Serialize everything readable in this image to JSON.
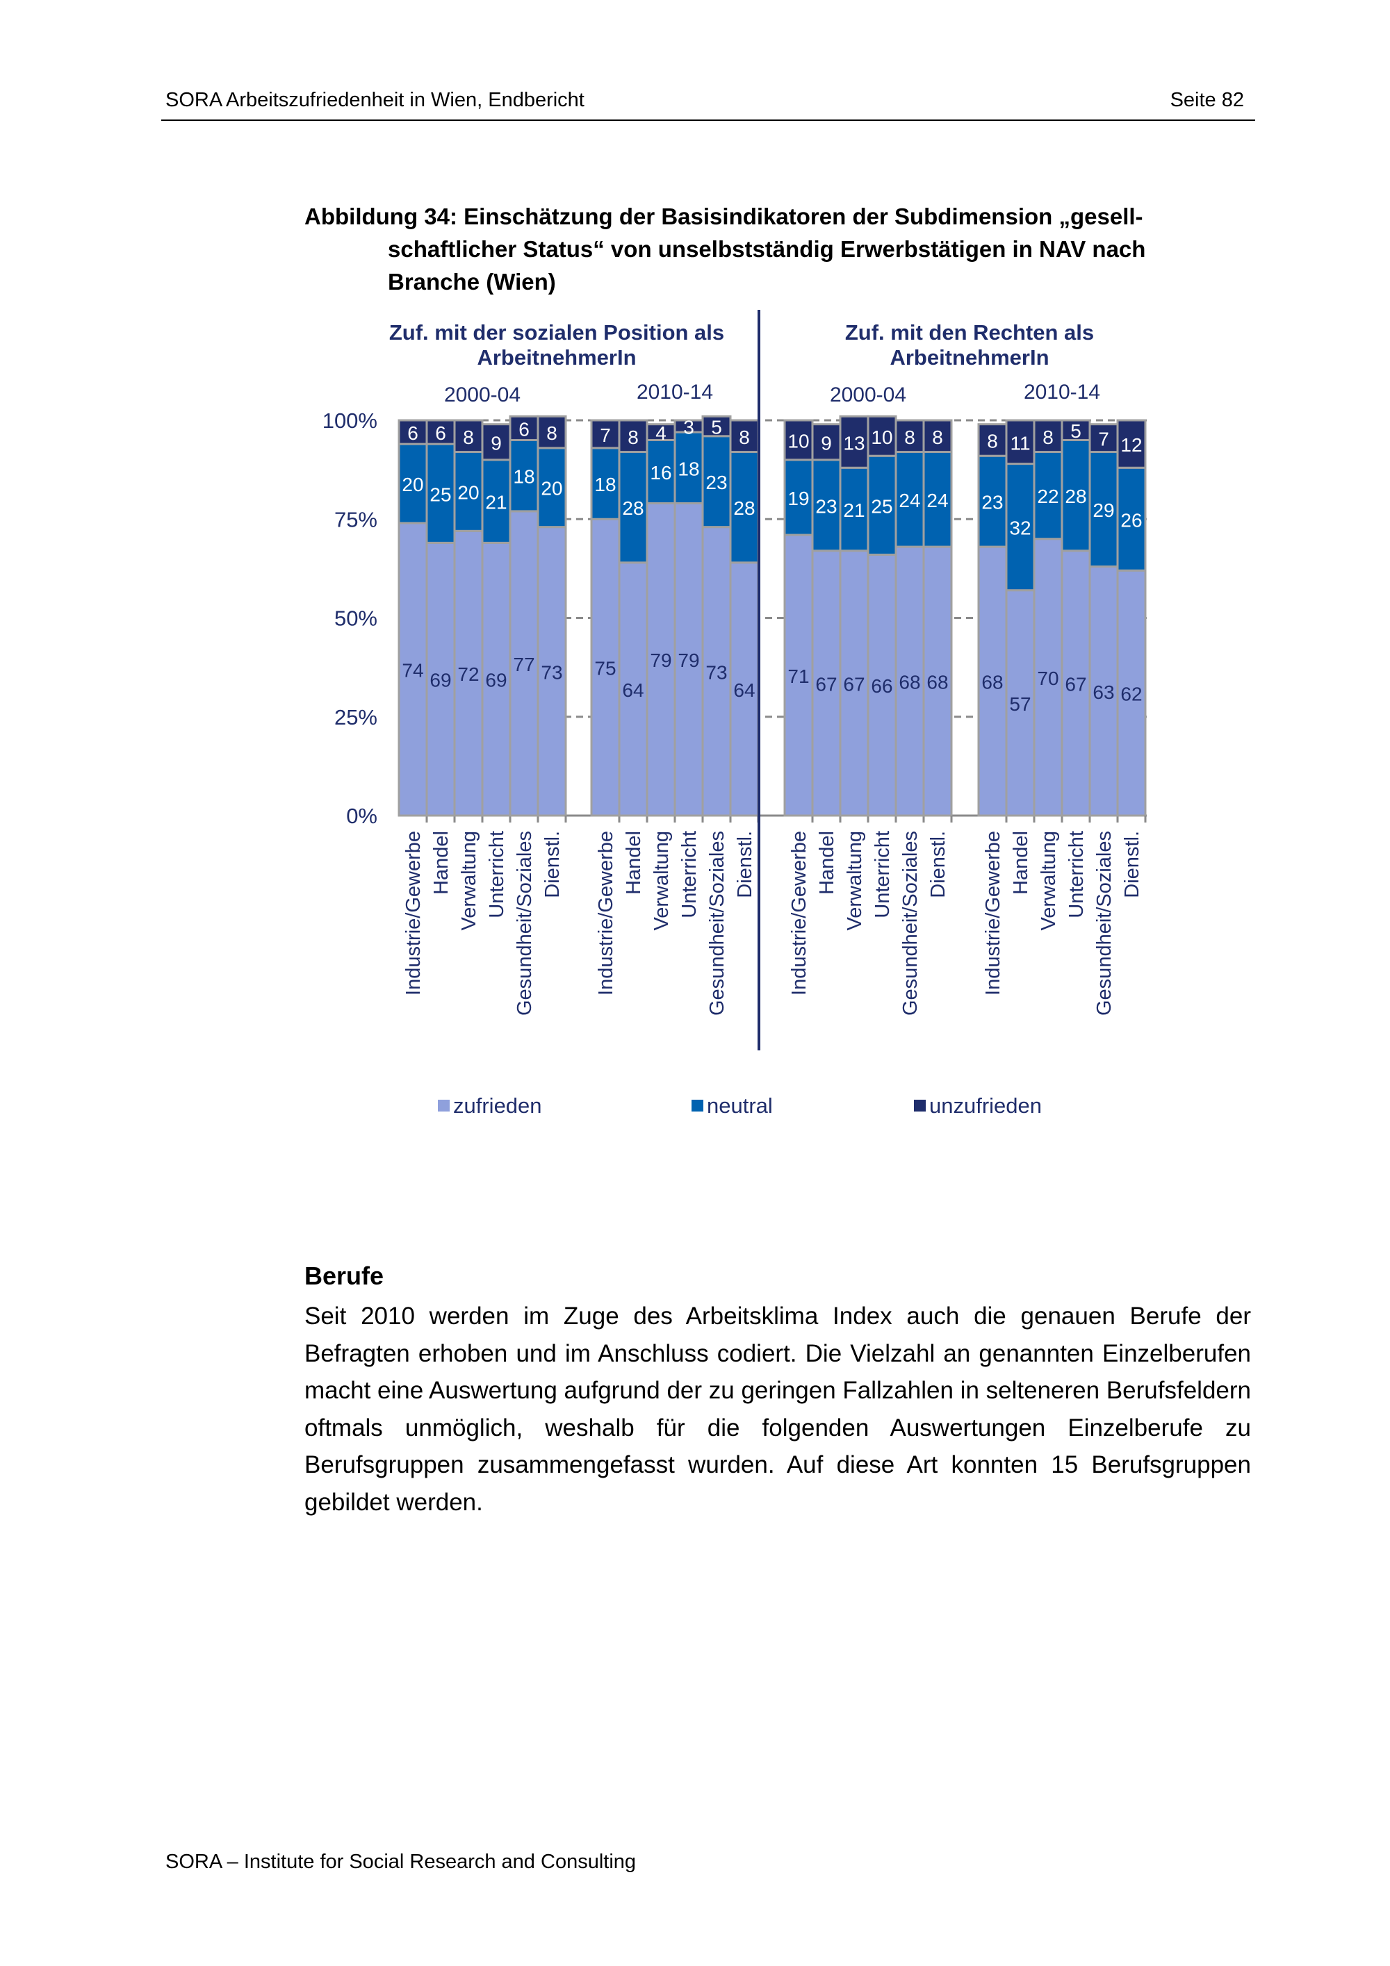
{
  "header": {
    "left": "SORA Arbeitszufriedenheit in Wien, Endbericht",
    "right": "Seite 82"
  },
  "caption": {
    "first": "Abbildung 34: Einschätzung der Basisindikatoren der Subdimension „gesell-",
    "rest": "schaftlicher Status“ von unselbstständig Erwerbstätigen in NAV nach Branche (Wien)"
  },
  "colors": {
    "zufrieden": "#8fa0dc",
    "neutral": "#0062b0",
    "unzufrieden": "#1f2d6b",
    "text": "#1f2d6b",
    "grid": "#8a8a8a"
  },
  "chart_data": {
    "type": "bar",
    "stacked": true,
    "panels": [
      {
        "title": "Zuf. mit der sozialen Position als ArbeitnehmerIn",
        "title_lines": [
          "Zuf. mit der sozialen Position als",
          "ArbeitnehmerIn"
        ],
        "groups": [
          {
            "period": "2000-04",
            "zufrieden": [
              74,
              69,
              72,
              69,
              77,
              73
            ],
            "neutral": [
              20,
              25,
              20,
              21,
              18,
              20
            ],
            "unzufrieden": [
              6,
              6,
              8,
              9,
              6,
              8
            ]
          },
          {
            "period": "2010-14",
            "zufrieden": [
              75,
              64,
              79,
              79,
              73,
              64
            ],
            "neutral": [
              18,
              28,
              16,
              18,
              23,
              28
            ],
            "unzufrieden": [
              7,
              8,
              4,
              3,
              5,
              8
            ]
          }
        ]
      },
      {
        "title": "Zuf. mit den Rechten als ArbeitnehmerIn",
        "title_lines": [
          "Zuf. mit den Rechten als",
          "ArbeitnehmerIn"
        ],
        "groups": [
          {
            "period": "2000-04",
            "zufrieden": [
              71,
              67,
              67,
              66,
              68,
              68
            ],
            "neutral": [
              19,
              23,
              21,
              25,
              24,
              24
            ],
            "unzufrieden": [
              10,
              9,
              13,
              10,
              8,
              8
            ]
          },
          {
            "period": "2010-14",
            "zufrieden": [
              68,
              57,
              70,
              67,
              63,
              62
            ],
            "neutral": [
              23,
              32,
              22,
              28,
              29,
              26
            ],
            "unzufrieden": [
              8,
              11,
              8,
              5,
              7,
              12
            ]
          }
        ]
      }
    ],
    "categories": [
      "Industrie/Gewerbe",
      "Handel",
      "Verwaltung",
      "Unterricht",
      "Gesundheit/Soziales",
      "Dienstl."
    ],
    "series": [
      "zufrieden",
      "neutral",
      "unzufrieden"
    ],
    "yticks": [
      "0%",
      "25%",
      "50%",
      "75%",
      "100%"
    ],
    "ylim": [
      0,
      100
    ],
    "grid": true,
    "legend": "bottom"
  },
  "body": {
    "heading": "Berufe",
    "paragraph": "Seit 2010 werden im Zuge des Arbeitsklima Index auch die genauen Berufe der Befragten erhoben und im Anschluss codiert. Die Vielzahl an genannten Einzelberufen macht eine Auswertung aufgrund der zu geringen Fallzahlen in selteneren Berufsfeldern oftmals unmöglich, weshalb für die folgenden Aus­wertungen Einzelberufe zu Berufsgruppen zusammengefasst wurden. Auf diese Art konnten 15 Berufsgruppen gebildet werden."
  },
  "footer": "SORA – Institute for Social Research and Consulting"
}
